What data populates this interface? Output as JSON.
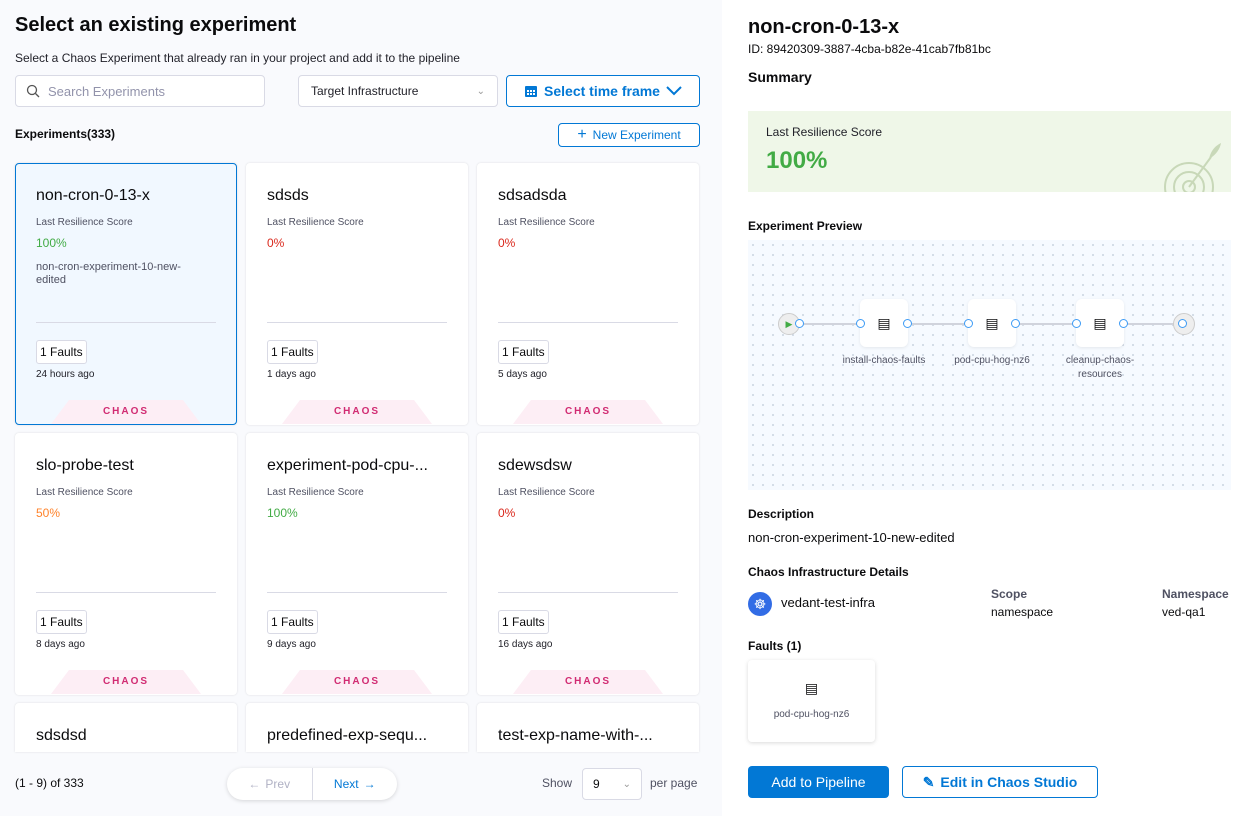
{
  "left": {
    "title": "Select an existing experiment",
    "subtitle": "Select a Chaos Experiment that already ran in your project and add it to the pipeline",
    "search_placeholder": "Search Experiments",
    "target_infra": "Target Infrastructure",
    "time_frame": "Select time frame",
    "count_label": "Experiments(333)",
    "new_experiment": "New Experiment",
    "score_label": "Last Resilience Score",
    "experiments": [
      {
        "name": "non-cron-0-13-x",
        "score": "100%",
        "score_color": "#42ab45",
        "description": "non-cron-experiment-10-new-edited",
        "faults": "1 Faults",
        "ago": "24 hours ago",
        "tag": "CHAOS",
        "selected": true
      },
      {
        "name": "sdsds",
        "score": "0%",
        "score_color": "#da291d",
        "description": "",
        "faults": "1 Faults",
        "ago": "1 days ago",
        "tag": "CHAOS"
      },
      {
        "name": "sdsadsda",
        "score": "0%",
        "score_color": "#da291d",
        "description": "",
        "faults": "1 Faults",
        "ago": "5 days ago",
        "tag": "CHAOS"
      },
      {
        "name": "slo-probe-test",
        "score": "50%",
        "score_color": "#ff832b",
        "description": "",
        "faults": "1 Faults",
        "ago": "8 days ago",
        "tag": "CHAOS"
      },
      {
        "name": "experiment-pod-cpu-...",
        "score": "100%",
        "score_color": "#42ab45",
        "description": "",
        "faults": "1 Faults",
        "ago": "9 days ago",
        "tag": "CHAOS"
      },
      {
        "name": "sdewsdsw",
        "score": "0%",
        "score_color": "#da291d",
        "description": "",
        "faults": "1 Faults",
        "ago": "16 days ago",
        "tag": "CHAOS"
      },
      {
        "name": "sdsdsd"
      },
      {
        "name": "predefined-exp-sequ..."
      },
      {
        "name": "test-exp-name-with-..."
      }
    ],
    "pagination": {
      "info": "(1 - 9) of 333",
      "prev": "Prev",
      "next": "Next",
      "show": "Show",
      "page_size": "9",
      "per_page": "per page"
    }
  },
  "right": {
    "title": "non-cron-0-13-x",
    "id": "ID: 89420309-3887-4cba-b82e-41cab7fb81bc",
    "summary": "Summary",
    "score_label": "Last Resilience Score",
    "score": "100%",
    "preview_label": "Experiment Preview",
    "steps": [
      {
        "label": "install-chaos-faults"
      },
      {
        "label": "pod-cpu-hog-nz6"
      },
      {
        "label": "cleanup-chaos-resources"
      }
    ],
    "description_label": "Description",
    "description": "non-cron-experiment-10-new-edited",
    "infra_label": "Chaos Infrastructure Details",
    "infra_name": "vedant-test-infra",
    "scope_label": "Scope",
    "scope": "namespace",
    "namespace_label": "Namespace",
    "namespace": "ved-qa1",
    "faults_label": "Faults (1)",
    "fault": "pod-cpu-hog-nz6",
    "add_button": "Add to Pipeline",
    "edit_button": "Edit in Chaos Studio"
  },
  "colors": {
    "accent": "#0278d5",
    "success": "#42ab45",
    "danger": "#da291d",
    "warning": "#ff832b",
    "chaos_tag": "#d12b72"
  }
}
